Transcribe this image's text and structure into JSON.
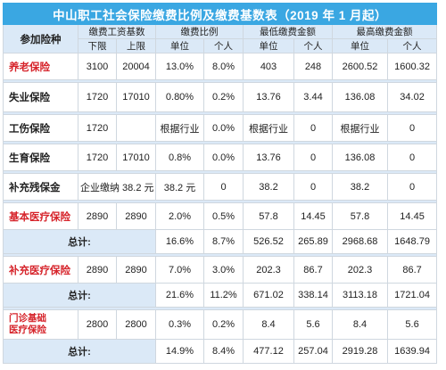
{
  "title": "中山职工社会保险缴费比例及缴费基数表（2019 年 1 月起）",
  "header": {
    "insurance_type": "参加险种",
    "wage_base": "缴费工资基数",
    "ratio": "缴费比例",
    "min_amount": "最低缴费金额",
    "max_amount": "最高缴费金额",
    "lower": "下限",
    "upper": "上限",
    "unit": "单位",
    "personal": "个人"
  },
  "rows": [
    {
      "name": "养老保险",
      "lower": "3100",
      "upper": "20004",
      "unit_ratio": "13.0%",
      "personal_ratio": "8.0%",
      "min_unit": "403",
      "min_personal": "248",
      "max_unit": "2600.52",
      "max_personal": "1600.32"
    },
    {
      "name": "失业保险",
      "lower": "1720",
      "upper": "17010",
      "unit_ratio": "0.80%",
      "personal_ratio": "0.2%",
      "min_unit": "13.76",
      "min_personal": "3.44",
      "max_unit": "136.08",
      "max_personal": "34.02"
    },
    {
      "name": "工伤保险",
      "lower": "1720",
      "upper": "",
      "unit_ratio": "根据行业",
      "personal_ratio": "0.0%",
      "min_unit": "根据行业",
      "min_personal": "0",
      "max_unit": "根据行业",
      "max_personal": "0"
    },
    {
      "name": "生育保险",
      "lower": "1720",
      "upper": "17010",
      "unit_ratio": "0.8%",
      "personal_ratio": "0.0%",
      "min_unit": "13.76",
      "min_personal": "0",
      "max_unit": "136.08",
      "max_personal": "0"
    },
    {
      "name": "补充残保金",
      "base_text": "企业缴纳 38.2 元",
      "unit_ratio": "38.2 元",
      "personal_ratio": "0",
      "min_unit": "38.2",
      "min_personal": "0",
      "max_unit": "38.2",
      "max_personal": "0"
    }
  ],
  "sections": [
    {
      "name": "基本医疗保险",
      "lower": "2890",
      "upper": "2890",
      "unit_ratio": "2.0%",
      "personal_ratio": "0.5%",
      "min_unit": "57.8",
      "min_personal": "14.45",
      "max_unit": "57.8",
      "max_personal": "14.45",
      "total": {
        "label": "总计:",
        "unit_ratio": "16.6%",
        "personal_ratio": "8.7%",
        "min_unit": "526.52",
        "min_personal": "265.89",
        "max_unit": "2968.68",
        "max_personal": "1648.79"
      }
    },
    {
      "name": "补充医疗保险",
      "lower": "2890",
      "upper": "2890",
      "unit_ratio": "7.0%",
      "personal_ratio": "3.0%",
      "min_unit": "202.3",
      "min_personal": "86.7",
      "max_unit": "202.3",
      "max_personal": "86.7",
      "total": {
        "label": "总计:",
        "unit_ratio": "21.6%",
        "personal_ratio": "11.2%",
        "min_unit": "671.02",
        "min_personal": "338.14",
        "max_unit": "3113.18",
        "max_personal": "1721.04"
      }
    },
    {
      "name_line1": "门诊基础",
      "name_line2": "医疗保险",
      "lower": "2800",
      "upper": "2800",
      "unit_ratio": "0.3%",
      "personal_ratio": "0.2%",
      "min_unit": "8.4",
      "min_personal": "5.6",
      "max_unit": "8.4",
      "max_personal": "5.6",
      "total": {
        "label": "总计:",
        "unit_ratio": "14.9%",
        "personal_ratio": "8.4%",
        "min_unit": "477.12",
        "min_personal": "257.04",
        "max_unit": "2919.28",
        "max_personal": "1639.94"
      }
    }
  ],
  "colors": {
    "title_bg": "#3aa7e2",
    "header_bg": "#dbe9f7",
    "red_text": "#d6232a"
  }
}
